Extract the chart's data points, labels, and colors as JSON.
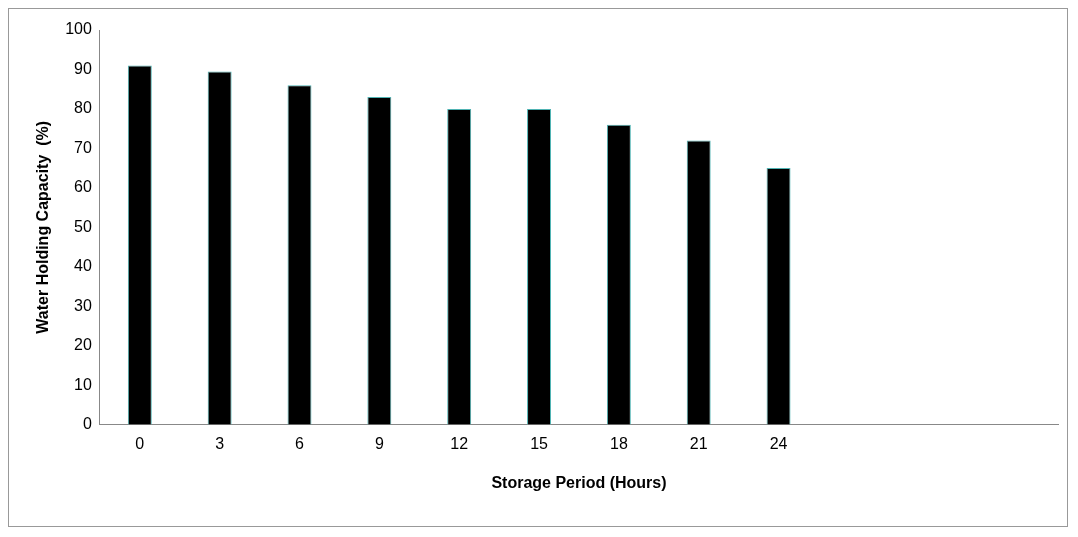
{
  "chart_data": {
    "type": "bar",
    "xlabel": "Storage Period (Hours)",
    "ylabel": "Water Holding Capacity  (%)",
    "categories": [
      "0",
      "3",
      "6",
      "9",
      "12",
      "15",
      "18",
      "21",
      "24",
      null,
      null,
      null
    ],
    "values": [
      91,
      89.5,
      86,
      83,
      80,
      80,
      76,
      72,
      65,
      null,
      null,
      null
    ],
    "color": "#000000",
    "ylim": [
      0,
      100
    ],
    "yticks": [
      0,
      10,
      20,
      30,
      40,
      50,
      60,
      70,
      80,
      90,
      100
    ],
    "grid": false,
    "legend": false
  }
}
